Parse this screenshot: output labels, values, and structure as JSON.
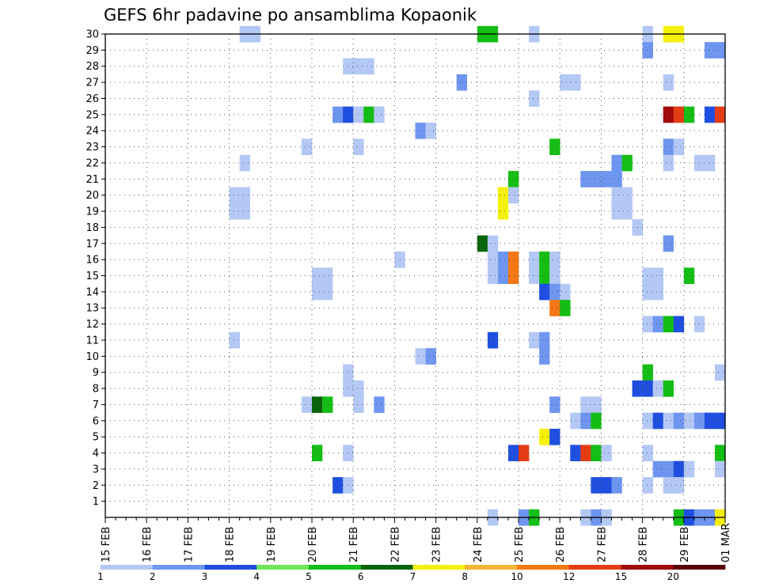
{
  "chart_data": {
    "type": "heatmap",
    "title": "GEFS 6hr padavine po ansamblima Kopaonik",
    "xlabel": "",
    "ylabel": "",
    "x_tick_labels": [
      "15 FEB",
      "16 FEB",
      "17 FEB",
      "18 FEB",
      "19 FEB",
      "20 FEB",
      "21 FEB",
      "22 FEB",
      "23 FEB",
      "24 FEB",
      "25 FEB",
      "26 FEB",
      "27 FEB",
      "28 FEB",
      "29 FEB",
      "01 MAR"
    ],
    "xlim": [
      "15 FEB 00Z",
      "01 MAR 00Z"
    ],
    "time_step_hours": 6,
    "y_ticks": [
      1,
      2,
      3,
      4,
      5,
      6,
      7,
      8,
      9,
      10,
      11,
      12,
      13,
      14,
      15,
      16,
      17,
      18,
      19,
      20,
      21,
      22,
      23,
      24,
      25,
      26,
      27,
      28,
      29,
      30
    ],
    "ylim": [
      0,
      30
    ],
    "grid": true,
    "color_levels": [
      "1",
      "2",
      "3",
      "4",
      "5",
      "6",
      "7",
      "8",
      "10",
      "12",
      "15",
      "20"
    ],
    "color_scale": [
      "#b4c8f5",
      "#6e96f0",
      "#1f4fe0",
      "#6ee65a",
      "#14be14",
      "#0a640a",
      "#f5f00a",
      "#f5b432",
      "#f57814",
      "#e63c14",
      "#a00a0a",
      "#5a0505"
    ],
    "cell_color_index_legend": "each cell: [day-of-month, hour UTC, member, color index]; time axis runs to 01 MAR",
    "cells": [
      [
        18,
        6,
        30,
        0
      ],
      [
        18,
        12,
        30,
        0
      ],
      [
        24,
        0,
        30,
        4
      ],
      [
        24,
        6,
        30,
        4
      ],
      [
        25,
        6,
        30,
        0
      ],
      [
        28,
        0,
        30,
        0
      ],
      [
        28,
        12,
        30,
        6
      ],
      [
        28,
        18,
        30,
        6
      ],
      [
        28,
        0,
        29,
        1
      ],
      [
        29,
        12,
        29,
        1
      ],
      [
        29,
        18,
        29,
        1
      ],
      [
        20,
        18,
        28,
        0
      ],
      [
        21,
        0,
        28,
        0
      ],
      [
        21,
        6,
        28,
        0
      ],
      [
        23,
        12,
        27,
        1
      ],
      [
        26,
        0,
        27,
        0
      ],
      [
        26,
        6,
        27,
        0
      ],
      [
        28,
        12,
        27,
        0
      ],
      [
        25,
        6,
        26,
        0
      ],
      [
        20,
        12,
        25,
        1
      ],
      [
        20,
        18,
        25,
        2
      ],
      [
        21,
        0,
        25,
        0
      ],
      [
        21,
        6,
        25,
        4
      ],
      [
        21,
        12,
        25,
        0
      ],
      [
        28,
        12,
        25,
        10
      ],
      [
        28,
        18,
        25,
        9
      ],
      [
        29,
        12,
        25,
        2
      ],
      [
        29,
        18,
        25,
        9
      ],
      [
        29,
        0,
        25,
        4
      ],
      [
        22,
        12,
        24,
        1
      ],
      [
        22,
        18,
        24,
        0
      ],
      [
        19,
        18,
        23,
        0
      ],
      [
        21,
        0,
        23,
        0
      ],
      [
        25,
        18,
        23,
        4
      ],
      [
        28,
        12,
        23,
        1
      ],
      [
        28,
        18,
        23,
        0
      ],
      [
        18,
        6,
        22,
        0
      ],
      [
        27,
        6,
        22,
        1
      ],
      [
        27,
        12,
        22,
        4
      ],
      [
        28,
        12,
        22,
        0
      ],
      [
        29,
        6,
        22,
        0
      ],
      [
        29,
        12,
        22,
        0
      ],
      [
        24,
        18,
        21,
        4
      ],
      [
        26,
        12,
        21,
        1
      ],
      [
        26,
        18,
        21,
        1
      ],
      [
        27,
        0,
        21,
        1
      ],
      [
        27,
        6,
        21,
        1
      ],
      [
        18,
        0,
        20,
        0
      ],
      [
        18,
        6,
        20,
        0
      ],
      [
        24,
        12,
        20,
        6
      ],
      [
        24,
        18,
        20,
        0
      ],
      [
        27,
        6,
        20,
        0
      ],
      [
        27,
        12,
        20,
        0
      ],
      [
        18,
        0,
        19,
        0
      ],
      [
        18,
        6,
        19,
        0
      ],
      [
        24,
        12,
        19,
        6
      ],
      [
        27,
        6,
        19,
        0
      ],
      [
        27,
        12,
        19,
        0
      ],
      [
        27,
        18,
        18,
        0
      ],
      [
        24,
        0,
        17,
        5
      ],
      [
        24,
        6,
        17,
        0
      ],
      [
        28,
        12,
        17,
        1
      ],
      [
        22,
        0,
        16,
        0
      ],
      [
        24,
        6,
        16,
        0
      ],
      [
        24,
        12,
        16,
        1
      ],
      [
        24,
        18,
        16,
        8
      ],
      [
        25,
        6,
        16,
        0
      ],
      [
        25,
        12,
        16,
        4
      ],
      [
        25,
        18,
        16,
        0
      ],
      [
        20,
        0,
        15,
        0
      ],
      [
        20,
        6,
        15,
        0
      ],
      [
        24,
        6,
        15,
        0
      ],
      [
        24,
        12,
        15,
        1
      ],
      [
        24,
        18,
        15,
        8
      ],
      [
        25,
        6,
        15,
        0
      ],
      [
        25,
        12,
        15,
        4
      ],
      [
        25,
        18,
        15,
        0
      ],
      [
        28,
        0,
        15,
        0
      ],
      [
        28,
        6,
        15,
        0
      ],
      [
        29,
        0,
        15,
        4
      ],
      [
        20,
        0,
        14,
        0
      ],
      [
        20,
        6,
        14,
        0
      ],
      [
        25,
        12,
        14,
        2
      ],
      [
        25,
        18,
        14,
        1
      ],
      [
        26,
        0,
        14,
        0
      ],
      [
        28,
        0,
        14,
        0
      ],
      [
        28,
        6,
        14,
        0
      ],
      [
        25,
        18,
        13,
        8
      ],
      [
        26,
        0,
        13,
        4
      ],
      [
        28,
        0,
        12,
        0
      ],
      [
        28,
        6,
        12,
        1
      ],
      [
        28,
        12,
        12,
        4
      ],
      [
        28,
        18,
        12,
        2
      ],
      [
        29,
        6,
        12,
        0
      ],
      [
        18,
        0,
        11,
        0
      ],
      [
        24,
        6,
        11,
        2
      ],
      [
        25,
        6,
        11,
        0
      ],
      [
        25,
        12,
        11,
        1
      ],
      [
        22,
        12,
        10,
        0
      ],
      [
        22,
        18,
        10,
        1
      ],
      [
        25,
        12,
        10,
        1
      ],
      [
        20,
        18,
        9,
        0
      ],
      [
        29,
        18,
        9,
        0
      ],
      [
        28,
        0,
        9,
        4
      ],
      [
        20,
        18,
        8,
        0
      ],
      [
        21,
        0,
        8,
        0
      ],
      [
        27,
        18,
        8,
        2
      ],
      [
        28,
        0,
        8,
        2
      ],
      [
        28,
        6,
        8,
        0
      ],
      [
        28,
        12,
        8,
        4
      ],
      [
        19,
        18,
        7,
        0
      ],
      [
        20,
        0,
        7,
        5
      ],
      [
        20,
        6,
        7,
        4
      ],
      [
        21,
        0,
        7,
        0
      ],
      [
        21,
        12,
        7,
        1
      ],
      [
        25,
        18,
        7,
        1
      ],
      [
        26,
        12,
        7,
        0
      ],
      [
        26,
        18,
        7,
        0
      ],
      [
        26,
        6,
        6,
        0
      ],
      [
        26,
        12,
        6,
        1
      ],
      [
        26,
        18,
        6,
        4
      ],
      [
        28,
        0,
        6,
        0
      ],
      [
        28,
        6,
        6,
        2
      ],
      [
        28,
        12,
        6,
        0
      ],
      [
        28,
        18,
        6,
        1
      ],
      [
        29,
        0,
        6,
        0
      ],
      [
        29,
        6,
        6,
        1
      ],
      [
        29,
        12,
        6,
        2
      ],
      [
        29,
        18,
        6,
        2
      ],
      [
        25,
        12,
        5,
        6
      ],
      [
        25,
        18,
        5,
        2
      ],
      [
        20,
        0,
        4,
        4
      ],
      [
        20,
        18,
        4,
        0
      ],
      [
        24,
        18,
        4,
        2
      ],
      [
        25,
        0,
        4,
        9
      ],
      [
        26,
        6,
        4,
        2
      ],
      [
        26,
        12,
        4,
        9
      ],
      [
        26,
        18,
        4,
        4
      ],
      [
        27,
        0,
        4,
        0
      ],
      [
        28,
        0,
        4,
        0
      ],
      [
        29,
        18,
        4,
        4
      ],
      [
        28,
        6,
        3,
        1
      ],
      [
        28,
        12,
        3,
        1
      ],
      [
        28,
        18,
        3,
        2
      ],
      [
        29,
        0,
        3,
        0
      ],
      [
        29,
        18,
        3,
        0
      ],
      [
        20,
        12,
        2,
        2
      ],
      [
        20,
        18,
        2,
        0
      ],
      [
        26,
        18,
        2,
        2
      ],
      [
        27,
        0,
        2,
        2
      ],
      [
        27,
        6,
        2,
        1
      ],
      [
        28,
        0,
        2,
        0
      ],
      [
        28,
        12,
        2,
        0
      ],
      [
        28,
        18,
        2,
        0
      ],
      [
        24,
        6,
        0,
        0
      ],
      [
        25,
        0,
        0,
        1
      ],
      [
        25,
        6,
        0,
        4
      ],
      [
        26,
        12,
        0,
        0
      ],
      [
        26,
        18,
        0,
        1
      ],
      [
        27,
        0,
        0,
        0
      ],
      [
        28,
        18,
        0,
        4
      ],
      [
        29,
        0,
        0,
        2
      ],
      [
        29,
        6,
        0,
        1
      ],
      [
        29,
        12,
        0,
        1
      ],
      [
        29,
        18,
        0,
        6
      ]
    ]
  }
}
